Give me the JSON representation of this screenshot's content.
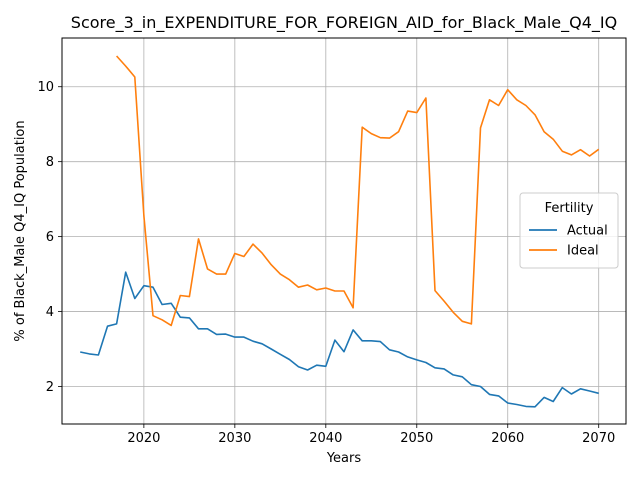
{
  "chart_data": {
    "type": "line",
    "title": "Score_3_in_EXPENDITURE_FOR_FOREIGN_AID_for_Black_Male_Q4_IQ",
    "xlabel": "Years",
    "ylabel": "% of Black_Male Q4_IQ Population",
    "xlim": [
      2011,
      2073
    ],
    "ylim": [
      1.0,
      11.3
    ],
    "xticks": [
      2020,
      2030,
      2040,
      2050,
      2060,
      2070
    ],
    "yticks": [
      2,
      4,
      6,
      8,
      10
    ],
    "grid": true,
    "legend": {
      "title": "Fertility",
      "placement": "center-right"
    },
    "series": [
      {
        "name": "Actual",
        "color": "#1f77b4",
        "x": [
          2013,
          2014,
          2015,
          2016,
          2017,
          2018,
          2019,
          2020,
          2021,
          2022,
          2023,
          2024,
          2025,
          2026,
          2027,
          2028,
          2029,
          2030,
          2031,
          2032,
          2033,
          2034,
          2035,
          2036,
          2037,
          2038,
          2039,
          2040,
          2041,
          2042,
          2043,
          2044,
          2045,
          2046,
          2047,
          2048,
          2049,
          2050,
          2051,
          2052,
          2053,
          2054,
          2055,
          2056,
          2057,
          2058,
          2059,
          2060,
          2061,
          2062,
          2063,
          2064,
          2065,
          2066,
          2067,
          2068,
          2069,
          2070
        ],
        "y": [
          2.92,
          2.87,
          2.84,
          3.61,
          3.67,
          5.05,
          4.35,
          4.69,
          4.65,
          4.19,
          4.22,
          3.85,
          3.83,
          3.54,
          3.54,
          3.39,
          3.4,
          3.32,
          3.32,
          3.21,
          3.14,
          3.0,
          2.86,
          2.72,
          2.53,
          2.44,
          2.57,
          2.54,
          3.24,
          2.93,
          3.51,
          3.22,
          3.22,
          3.2,
          2.98,
          2.92,
          2.79,
          2.71,
          2.64,
          2.5,
          2.47,
          2.31,
          2.26,
          2.05,
          2.0,
          1.79,
          1.75,
          1.56,
          1.52,
          1.47,
          1.46,
          1.71,
          1.6,
          1.97,
          1.8,
          1.94,
          1.88,
          1.82
        ]
      },
      {
        "name": "Ideal",
        "color": "#ff7f0e",
        "x": [
          2017,
          2018,
          2019,
          2020,
          2021,
          2022,
          2023,
          2024,
          2025,
          2026,
          2027,
          2028,
          2029,
          2030,
          2031,
          2032,
          2033,
          2034,
          2035,
          2036,
          2037,
          2038,
          2039,
          2040,
          2041,
          2042,
          2043,
          2044,
          2045,
          2046,
          2047,
          2048,
          2049,
          2050,
          2051,
          2052,
          2053,
          2054,
          2055,
          2056,
          2057,
          2058,
          2059,
          2060,
          2061,
          2062,
          2063,
          2064,
          2065,
          2066,
          2067,
          2068,
          2069,
          2070
        ],
        "y": [
          10.82,
          10.55,
          10.26,
          6.55,
          3.89,
          3.78,
          3.63,
          4.43,
          4.4,
          5.94,
          5.14,
          5.0,
          5.0,
          5.55,
          5.47,
          5.8,
          5.56,
          5.25,
          5.0,
          4.85,
          4.65,
          4.71,
          4.58,
          4.63,
          4.55,
          4.55,
          4.1,
          8.92,
          8.75,
          8.64,
          8.63,
          8.8,
          9.35,
          9.31,
          9.7,
          4.56,
          4.28,
          3.98,
          3.74,
          3.67,
          8.9,
          9.65,
          9.5,
          9.92,
          9.65,
          9.5,
          9.25,
          8.8,
          8.6,
          8.28,
          8.18,
          8.32,
          8.15,
          8.33
        ]
      }
    ]
  }
}
